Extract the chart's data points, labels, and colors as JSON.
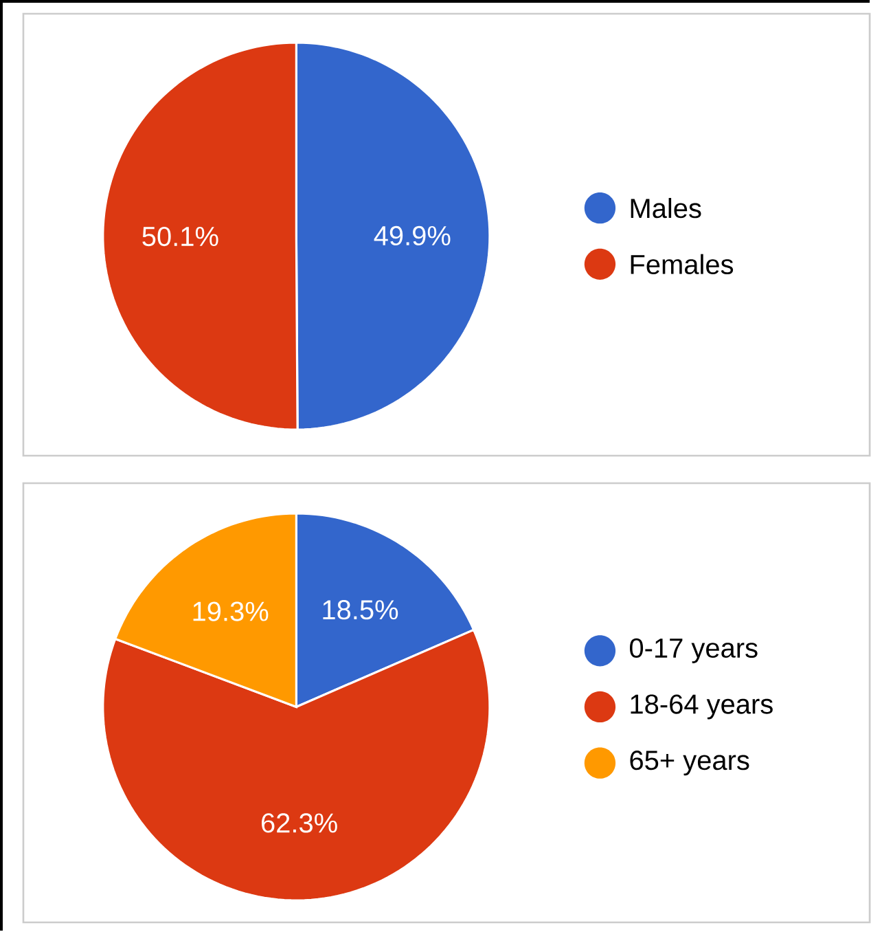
{
  "chart_data": [
    {
      "type": "pie",
      "categories": [
        "Males",
        "Females"
      ],
      "values": [
        49.9,
        50.1
      ],
      "colors": [
        "#3366cc",
        "#dc3912"
      ],
      "value_labels": [
        "49.9%",
        "50.1%"
      ],
      "legend": "right"
    },
    {
      "type": "pie",
      "categories": [
        "0-17 years",
        "18-64 years",
        "65+ years"
      ],
      "values": [
        18.5,
        62.3,
        19.3
      ],
      "colors": [
        "#3366cc",
        "#dc3912",
        "#ff9900"
      ],
      "value_labels": [
        "18.5%",
        "62.3%",
        "19.3%"
      ],
      "legend": "right"
    }
  ]
}
